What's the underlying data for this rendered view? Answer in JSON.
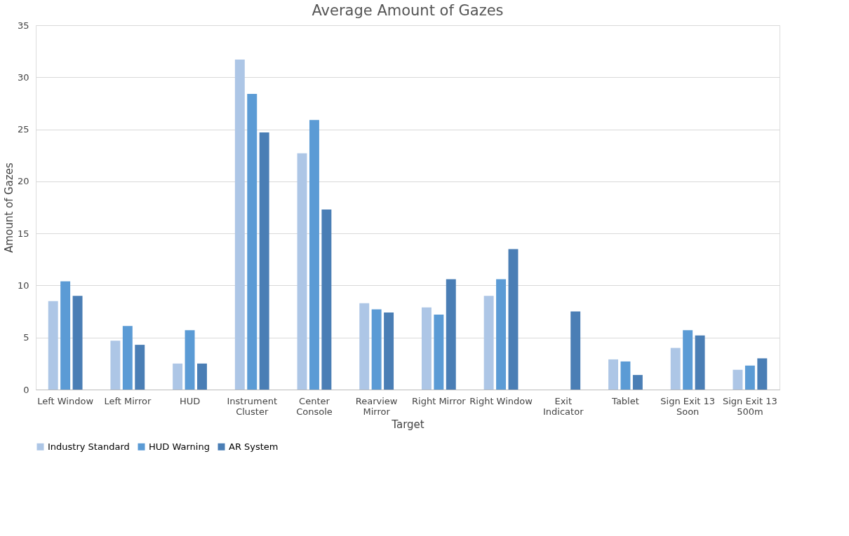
{
  "chart_data": {
    "type": "bar",
    "title": "Average Amount of Gazes",
    "xlabel": "Target",
    "ylabel": "Amount of Gazes",
    "categories": [
      "Left Window",
      "Left Mirror",
      "HUD",
      "Instrument Cluster",
      "Center Console",
      "Rearview Mirror",
      "Right Mirror",
      "Right Window",
      "Exit Indicator",
      "Tablet",
      "Sign Exit 13 Soon",
      "Sign Exit 13 500m"
    ],
    "series": [
      {
        "name": "Industry Standard",
        "color": "#adc6e6",
        "values": [
          8.5,
          4.7,
          2.5,
          31.7,
          22.7,
          8.3,
          7.9,
          9.0,
          0,
          2.9,
          4.0,
          1.9
        ]
      },
      {
        "name": "HUD Warning",
        "color": "#5b9bd5",
        "values": [
          10.4,
          6.1,
          5.7,
          28.4,
          25.9,
          7.7,
          7.2,
          10.6,
          0,
          2.7,
          5.7,
          2.3
        ]
      },
      {
        "name": "AR System",
        "color": "#4a7eb5",
        "values": [
          9.0,
          4.3,
          2.5,
          24.7,
          17.3,
          7.4,
          10.6,
          13.5,
          7.5,
          1.4,
          5.2,
          3.0
        ]
      }
    ],
    "ylim": [
      0,
      35
    ],
    "yticks": [
      0,
      5,
      10,
      15,
      20,
      25,
      30,
      35
    ],
    "grid": "y",
    "legend": "bottom"
  }
}
